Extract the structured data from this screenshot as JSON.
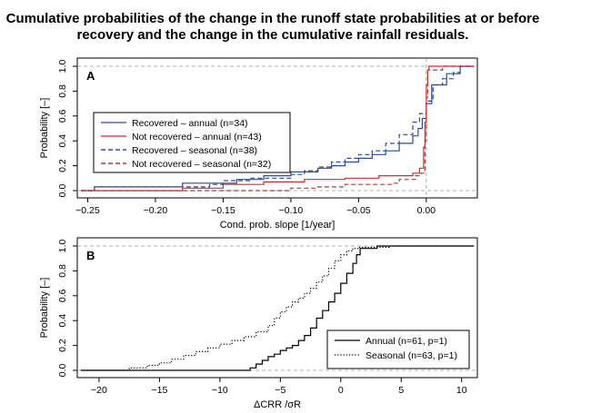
{
  "figure": {
    "title_line1": "Cumulative probabilities of the change in the runoff state probabilities at or before",
    "title_line2": "recovery and the change in the cumulative rainfall residuals."
  },
  "chart_data": [
    {
      "type": "line",
      "panel_label": "A",
      "xlabel": "Cond. prob. slope [1/year]",
      "ylabel": "Probability [–]",
      "xlim": [
        -0.255,
        0.035
      ],
      "ylim": [
        0,
        1
      ],
      "x_ticks": [
        -0.25,
        -0.2,
        -0.15,
        -0.1,
        -0.05,
        0.0
      ],
      "x_tick_labels": [
        "−0.25",
        "−0.20",
        "−0.15",
        "−0.10",
        "−0.05",
        "0.00"
      ],
      "y_ticks": [
        0,
        0.2,
        0.4,
        0.6,
        0.8,
        1.0
      ],
      "y_tick_labels": [
        "0.0",
        "0.2",
        "0.4",
        "0.6",
        "0.8",
        "1.0"
      ],
      "reference_lines": {
        "vertical_x": 0,
        "horizontal_y": [
          0,
          1
        ]
      },
      "legend_position": "center-left",
      "series": [
        {
          "name": "Recovered – annual (n=34)",
          "color": "#2b4aa0",
          "dash": "solid",
          "x": [
            -0.245,
            -0.18,
            -0.15,
            -0.14,
            -0.13,
            -0.12,
            -0.1,
            -0.09,
            -0.08,
            -0.07,
            -0.06,
            -0.05,
            -0.04,
            -0.03,
            -0.02,
            -0.01,
            -0.006,
            -0.003,
            0,
            0.004,
            0.015,
            0.025
          ],
          "y": [
            0.03,
            0.06,
            0.06,
            0.09,
            0.09,
            0.12,
            0.15,
            0.15,
            0.18,
            0.2,
            0.23,
            0.26,
            0.29,
            0.32,
            0.38,
            0.44,
            0.5,
            0.58,
            0.7,
            0.85,
            0.94,
            1.0
          ]
        },
        {
          "name": "Not recovered – annual (n=43)",
          "color": "#d62c2c",
          "dash": "solid",
          "x": [
            -0.18,
            -0.15,
            -0.12,
            -0.09,
            -0.06,
            -0.035,
            -0.02,
            -0.01,
            -0.005,
            -0.002,
            -0.001,
            0,
            0.001,
            0.002
          ],
          "y": [
            0.02,
            0.05,
            0.07,
            0.09,
            0.1,
            0.12,
            0.12,
            0.14,
            0.18,
            0.35,
            0.55,
            0.85,
            0.97,
            1.0
          ]
        },
        {
          "name": "Recovered – seasonal (n=38)",
          "color": "#2b4aa0",
          "dash": "dashed",
          "x": [
            -0.245,
            -0.16,
            -0.15,
            -0.13,
            -0.1,
            -0.09,
            -0.08,
            -0.07,
            -0.06,
            -0.05,
            -0.04,
            -0.03,
            -0.02,
            -0.01,
            -0.005,
            0,
            0.005,
            0.012,
            0.02,
            0.025
          ],
          "y": [
            0.03,
            0.05,
            0.08,
            0.1,
            0.13,
            0.16,
            0.19,
            0.23,
            0.26,
            0.29,
            0.32,
            0.38,
            0.45,
            0.55,
            0.62,
            0.72,
            0.85,
            0.9,
            0.95,
            1.0
          ]
        },
        {
          "name": "Not recovered – seasonal (n=32)",
          "color": "#d62c2c",
          "dash": "dashed",
          "x": [
            -0.1,
            -0.08,
            -0.06,
            -0.04,
            -0.025,
            -0.02,
            -0.012,
            -0.008,
            -0.004,
            -0.001,
            0,
            0.001,
            0.008,
            0.012,
            0.025
          ],
          "y": [
            0.02,
            0.03,
            0.05,
            0.05,
            0.06,
            0.09,
            0.09,
            0.12,
            0.14,
            0.4,
            0.75,
            0.97,
            0.97,
            1.0,
            1.0
          ]
        }
      ]
    },
    {
      "type": "line",
      "panel_label": "B",
      "xlabel": "ΔCRR /σR",
      "ylabel": "Probability [–]",
      "xlim": [
        -21.5,
        11
      ],
      "ylim": [
        0,
        1
      ],
      "x_ticks": [
        -20,
        -15,
        -10,
        -5,
        0,
        5,
        10
      ],
      "x_tick_labels": [
        "−20",
        "−15",
        "−10",
        "−5",
        "0",
        "5",
        "10"
      ],
      "y_ticks": [
        0,
        0.2,
        0.4,
        0.6,
        0.8,
        1.0
      ],
      "y_tick_labels": [
        "0.0",
        "0.2",
        "0.4",
        "0.6",
        "0.8",
        "1.0"
      ],
      "reference_lines": {
        "horizontal_y": [
          0,
          1
        ]
      },
      "legend_position": "bottom-right",
      "series": [
        {
          "name": "Annual (n=61, p=1)",
          "color": "#000000",
          "dash": "solid",
          "x": [
            -7.5,
            -7,
            -6.5,
            -6,
            -5.5,
            -5,
            -4.5,
            -4,
            -3.5,
            -3,
            -2.5,
            -2,
            -1.5,
            -1,
            -0.5,
            0,
            0.5,
            1,
            1.3,
            1.6,
            2.5,
            3
          ],
          "y": [
            0.02,
            0.05,
            0.08,
            0.11,
            0.13,
            0.16,
            0.18,
            0.2,
            0.24,
            0.28,
            0.34,
            0.42,
            0.48,
            0.55,
            0.62,
            0.7,
            0.78,
            0.86,
            0.93,
            0.98,
            0.98,
            1.0
          ]
        },
        {
          "name": "Seasonal (n=63, p=1)",
          "color": "#000000",
          "dash": "dotted",
          "x": [
            -17.5,
            -16,
            -15,
            -14,
            -13,
            -12,
            -11,
            -10,
            -9,
            -8,
            -7,
            -6,
            -5.5,
            -5,
            -4.5,
            -4,
            -3.5,
            -3,
            -2.5,
            -2,
            -1.5,
            -1,
            -0.5,
            0,
            0.5,
            1,
            1.5,
            2.5,
            4,
            6,
            7
          ],
          "y": [
            0.02,
            0.04,
            0.06,
            0.09,
            0.12,
            0.15,
            0.18,
            0.21,
            0.24,
            0.27,
            0.31,
            0.36,
            0.42,
            0.47,
            0.51,
            0.55,
            0.58,
            0.62,
            0.66,
            0.71,
            0.76,
            0.82,
            0.88,
            0.93,
            0.96,
            0.98,
            0.99,
            0.99,
            1.0,
            1.0,
            1.0
          ]
        }
      ]
    }
  ]
}
